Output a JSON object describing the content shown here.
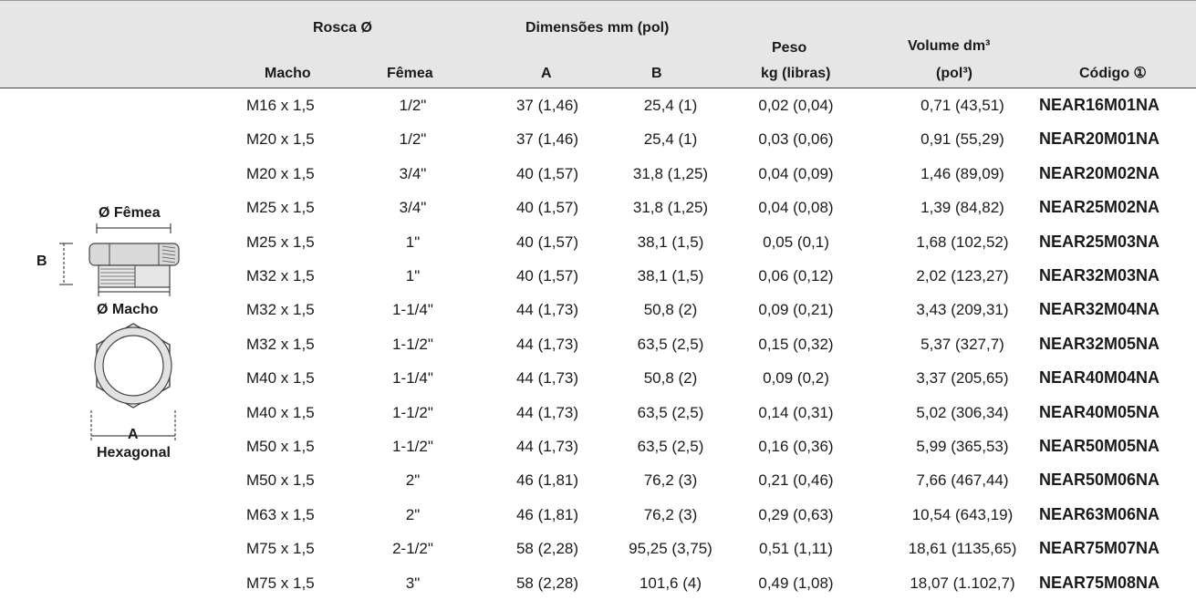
{
  "header": {
    "rosca": "Rosca Ø",
    "dimensoes": "Dimensões mm (pol)",
    "macho": "Macho",
    "femea": "Fêmea",
    "a": "A",
    "b": "B",
    "peso_line1": "Peso",
    "peso_line2": "kg (libras)",
    "volume_line1": "Volume dm³",
    "volume_line2": "(pol³)",
    "codigo": "Código ①"
  },
  "figure": {
    "femea_label": "Ø Fêmea",
    "b_label": "B",
    "macho_label": "Ø Macho",
    "a_label": "A",
    "hexagonal_label": "Hexagonal"
  },
  "rows": [
    {
      "macho": "M16 x 1,5",
      "femea": "1/2\"",
      "a": "37 (1,46)",
      "b": "25,4 (1)",
      "peso": "0,02 (0,04)",
      "volume": "0,71 (43,51)",
      "codigo": "NEAR16M01NA"
    },
    {
      "macho": "M20 x 1,5",
      "femea": "1/2\"",
      "a": "37 (1,46)",
      "b": "25,4 (1)",
      "peso": "0,03 (0,06)",
      "volume": "0,91 (55,29)",
      "codigo": "NEAR20M01NA"
    },
    {
      "macho": "M20 x 1,5",
      "femea": "3/4\"",
      "a": "40 (1,57)",
      "b": "31,8 (1,25)",
      "peso": "0,04 (0,09)",
      "volume": "1,46 (89,09)",
      "codigo": "NEAR20M02NA"
    },
    {
      "macho": "M25 x 1,5",
      "femea": "3/4\"",
      "a": "40 (1,57)",
      "b": "31,8 (1,25)",
      "peso": "0,04 (0,08)",
      "volume": "1,39 (84,82)",
      "codigo": "NEAR25M02NA"
    },
    {
      "macho": "M25 x 1,5",
      "femea": "1\"",
      "a": "40 (1,57)",
      "b": "38,1 (1,5)",
      "peso": "0,05 (0,1)",
      "volume": "1,68 (102,52)",
      "codigo": "NEAR25M03NA"
    },
    {
      "macho": "M32 x 1,5",
      "femea": "1\"",
      "a": "40 (1,57)",
      "b": "38,1 (1,5)",
      "peso": "0,06 (0,12)",
      "volume": "2,02 (123,27)",
      "codigo": "NEAR32M03NA"
    },
    {
      "macho": "M32 x 1,5",
      "femea": "1-1/4\"",
      "a": "44 (1,73)",
      "b": "50,8 (2)",
      "peso": "0,09 (0,21)",
      "volume": "3,43 (209,31)",
      "codigo": "NEAR32M04NA"
    },
    {
      "macho": "M32 x 1,5",
      "femea": "1-1/2\"",
      "a": "44 (1,73)",
      "b": "63,5 (2,5)",
      "peso": "0,15 (0,32)",
      "volume": "5,37 (327,7)",
      "codigo": "NEAR32M05NA"
    },
    {
      "macho": "M40 x 1,5",
      "femea": "1-1/4\"",
      "a": "44 (1,73)",
      "b": "50,8 (2)",
      "peso": "0,09 (0,2)",
      "volume": "3,37 (205,65)",
      "codigo": "NEAR40M04NA"
    },
    {
      "macho": "M40 x 1,5",
      "femea": "1-1/2\"",
      "a": "44 (1,73)",
      "b": "63,5 (2,5)",
      "peso": "0,14 (0,31)",
      "volume": "5,02 (306,34)",
      "codigo": "NEAR40M05NA"
    },
    {
      "macho": "M50 x 1,5",
      "femea": "1-1/2\"",
      "a": "44 (1,73)",
      "b": "63,5 (2,5)",
      "peso": "0,16 (0,36)",
      "volume": "5,99 (365,53)",
      "codigo": "NEAR50M05NA"
    },
    {
      "macho": "M50 x 1,5",
      "femea": "2\"",
      "a": "46 (1,81)",
      "b": "76,2 (3)",
      "peso": "0,21 (0,46)",
      "volume": "7,66 (467,44)",
      "codigo": "NEAR50M06NA"
    },
    {
      "macho": "M63 x 1,5",
      "femea": "2\"",
      "a": "46 (1,81)",
      "b": "76,2 (3)",
      "peso": "0,29 (0,63)",
      "volume": "10,54 (643,19)",
      "codigo": "NEAR63M06NA"
    },
    {
      "macho": "M75 x 1,5",
      "femea": "2-1/2\"",
      "a": "58 (2,28)",
      "b": "95,25 (3,75)",
      "peso": "0,51 (1,11)",
      "volume": "18,61 (1135,65)",
      "codigo": "NEAR75M07NA"
    },
    {
      "macho": "M75 x 1,5",
      "femea": "3\"",
      "a": "58 (2,28)",
      "b": "101,6 (4)",
      "peso": "0,49 (1,08)",
      "volume": "18,07 (1.102,7)",
      "codigo": "NEAR75M08NA"
    }
  ]
}
